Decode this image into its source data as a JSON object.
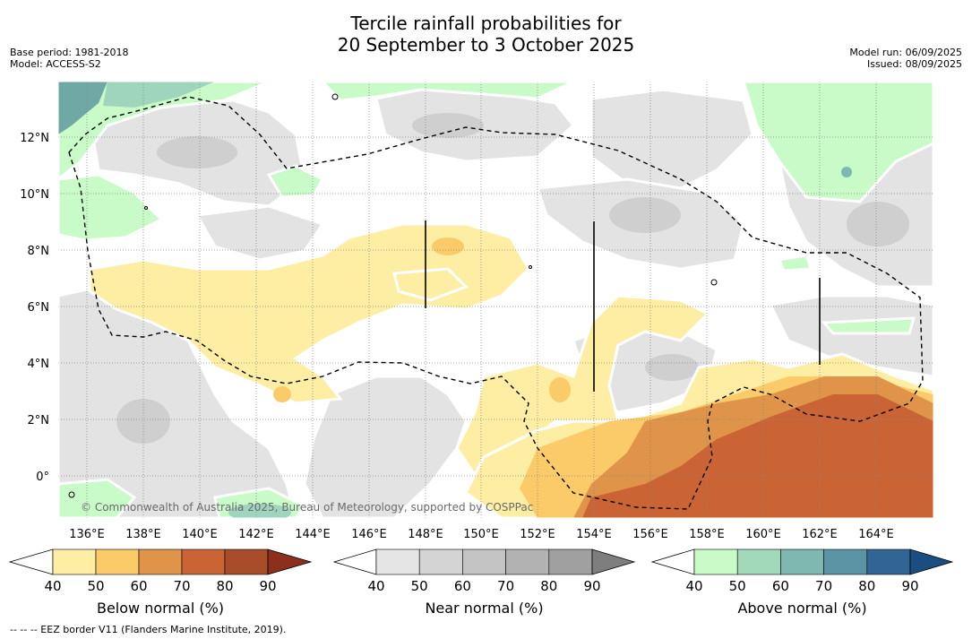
{
  "title": {
    "line1": "Tercile rainfall probabilities for",
    "line2": "20 September to 3 October 2025"
  },
  "meta_left": {
    "base_period": "Base period: 1981-2018",
    "model": "Model: ACCESS-S2"
  },
  "meta_right": {
    "model_run": "Model run: 06/09/2025",
    "issued": "Issued: 08/09/2025"
  },
  "map": {
    "lon_labels": [
      "136°E",
      "138°E",
      "140°E",
      "142°E",
      "144°E",
      "146°E",
      "148°E",
      "150°E",
      "152°E",
      "154°E",
      "156°E",
      "158°E",
      "160°E",
      "162°E",
      "164°E"
    ],
    "lat_labels": [
      "12°N",
      "10°N",
      "8°N",
      "6°N",
      "4°N",
      "2°N",
      "0°"
    ],
    "lon_range": [
      134.9,
      166.0
    ],
    "lat_range": [
      -1.5,
      14.0
    ],
    "copyright": "© Commonwealth of Australia 2025, Bureau of Meteorology, supported by COSPPac"
  },
  "colorbars": [
    {
      "label": "Below normal (%)",
      "ticks": [
        "40",
        "50",
        "60",
        "70",
        "80",
        "90"
      ],
      "colors": [
        "#ffffff",
        "#fdeea4",
        "#fbcb6a",
        "#e0944a",
        "#cb6434",
        "#a94c2a",
        "#8c2f1c"
      ]
    },
    {
      "label": "Near normal (%)",
      "ticks": [
        "40",
        "50",
        "60",
        "70",
        "80",
        "90"
      ],
      "colors": [
        "#ffffff",
        "#e5e5e5",
        "#d4d4d4",
        "#c4c4c4",
        "#b2b2b2",
        "#a0a0a0",
        "#7e7e7e"
      ]
    },
    {
      "label": "Above normal (%)",
      "ticks": [
        "40",
        "50",
        "60",
        "70",
        "80",
        "90"
      ],
      "colors": [
        "#ffffff",
        "#c8fbc8",
        "#a3d9bb",
        "#7fb8b1",
        "#5b94a5",
        "#316596",
        "#1a4d80"
      ]
    }
  ],
  "footnote": "--  --  -- EEZ border V11 (Flanders Marine Institute, 2019)."
}
